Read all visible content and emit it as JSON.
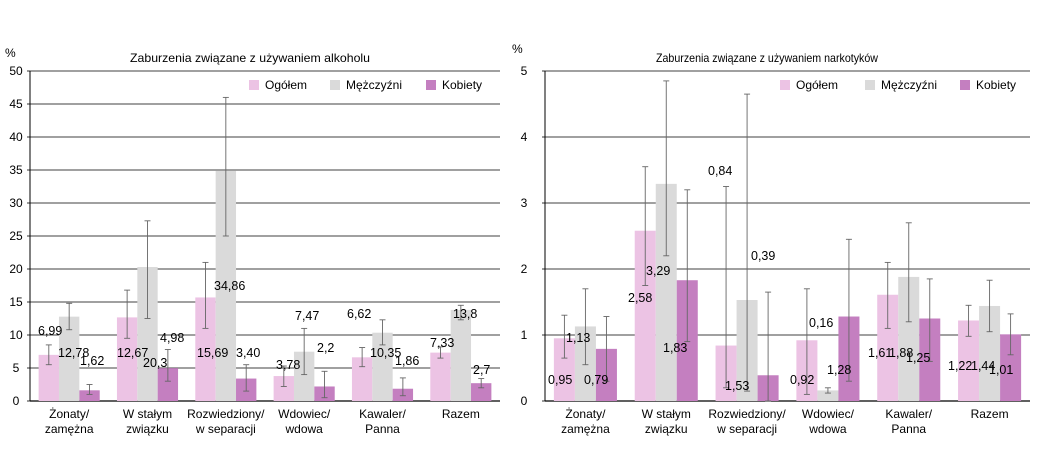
{
  "colors": {
    "ogolem": "#ecc3e4",
    "mezczyzni": "#dadada",
    "kobiety": "#c47fc0",
    "axis": "#000000",
    "grid": "#000000",
    "error": "#666666"
  },
  "chart_data": [
    {
      "type": "bar",
      "title": "Zaburzenia związane z używaniem alkoholu",
      "ylabel": "%",
      "ylim": [
        0,
        50
      ],
      "yticks": [
        "0",
        "5",
        "10",
        "15",
        "20",
        "25",
        "30",
        "35",
        "40",
        "45",
        "50"
      ],
      "grid": true,
      "legend_position": "top-right",
      "categories": [
        [
          "Żonaty/",
          "zamężna"
        ],
        [
          "W stałym",
          "związku"
        ],
        [
          "Rozwiedziony/",
          "w separacji"
        ],
        [
          "Wdowiec/",
          "wdowa"
        ],
        [
          "Kawaler/",
          "Panna"
        ],
        [
          "Razem"
        ]
      ],
      "series": [
        {
          "name": "Ogółem",
          "values": [
            6.99,
            12.67,
            15.69,
            3.78,
            6.62,
            7.33
          ],
          "labels": [
            "6,99",
            "12,67",
            "15,69",
            "3,78",
            "6,62",
            "7,33"
          ],
          "error_low": [
            5.5,
            9.5,
            11.0,
            2.2,
            5.2,
            6.5
          ],
          "error_high": [
            8.5,
            16.8,
            21.0,
            5.3,
            8.1,
            8.2
          ]
        },
        {
          "name": "Mężczyźni",
          "values": [
            12.78,
            20.3,
            34.86,
            7.47,
            10.35,
            13.8
          ],
          "labels": [
            "12,78",
            "20,3",
            "34,86",
            "7,47",
            "10,35",
            "13,8"
          ],
          "error_low": [
            10.8,
            12.5,
            25.0,
            4.0,
            8.5,
            12.3
          ],
          "error_high": [
            14.8,
            27.3,
            46.0,
            11.0,
            12.3,
            14.5
          ]
        },
        {
          "name": "Kobiety",
          "values": [
            1.62,
            4.98,
            3.4,
            2.2,
            1.86,
            2.7
          ],
          "labels": [
            "1,62",
            "4,98",
            "3,40",
            "2,2",
            "1,86",
            "2,7"
          ],
          "error_low": [
            1.0,
            3.0,
            1.5,
            0.5,
            0.8,
            2.0
          ],
          "error_high": [
            2.5,
            7.8,
            5.5,
            4.5,
            3.5,
            3.4
          ]
        }
      ]
    },
    {
      "type": "bar",
      "title": "Zaburzenia związane z używaniem narkotyków",
      "ylabel": "%",
      "ylim": [
        0,
        5
      ],
      "yticks": [
        "0",
        "1",
        "2",
        "3",
        "4",
        "5"
      ],
      "grid": true,
      "legend_position": "top-right",
      "categories": [
        [
          "Żonaty/",
          "zamężna"
        ],
        [
          "W stałym",
          "związku"
        ],
        [
          "Rozwiedziony/",
          "w separacji"
        ],
        [
          "Wdowiec/",
          "wdowa"
        ],
        [
          "Kawaler/",
          "Panna"
        ],
        [
          "Razem"
        ]
      ],
      "series": [
        {
          "name": "Ogółem",
          "values": [
            0.95,
            2.58,
            0.84,
            0.92,
            1.61,
            1.22
          ],
          "labels": [
            "0,95",
            "2,58",
            "0,84",
            "0,92",
            "1,61",
            "1,22"
          ],
          "error_low": [
            0.65,
            1.75,
            0.2,
            0.1,
            1.1,
            0.98
          ],
          "error_high": [
            1.3,
            3.55,
            3.25,
            1.7,
            2.1,
            1.45
          ]
        },
        {
          "name": "Mężczyźni",
          "values": [
            1.13,
            3.29,
            1.53,
            0.16,
            1.88,
            1.44
          ],
          "labels": [
            "1,13",
            "3,29",
            "1,53",
            "0,16",
            "1,88",
            "1,44"
          ],
          "error_low": [
            0.55,
            2.2,
            0.15,
            0.12,
            1.2,
            1.05
          ],
          "error_high": [
            1.7,
            4.85,
            4.65,
            0.2,
            2.7,
            1.83
          ]
        },
        {
          "name": "Kobiety",
          "values": [
            0.79,
            1.83,
            0.39,
            1.28,
            1.25,
            1.01
          ],
          "labels": [
            "0,79",
            "1,83",
            "0,39",
            "1,28",
            "1,25",
            "1,01"
          ],
          "error_low": [
            0.3,
            0.9,
            0.0,
            0.3,
            0.6,
            0.7
          ],
          "error_high": [
            1.28,
            3.2,
            1.65,
            2.45,
            1.85,
            1.32
          ]
        }
      ]
    }
  ]
}
